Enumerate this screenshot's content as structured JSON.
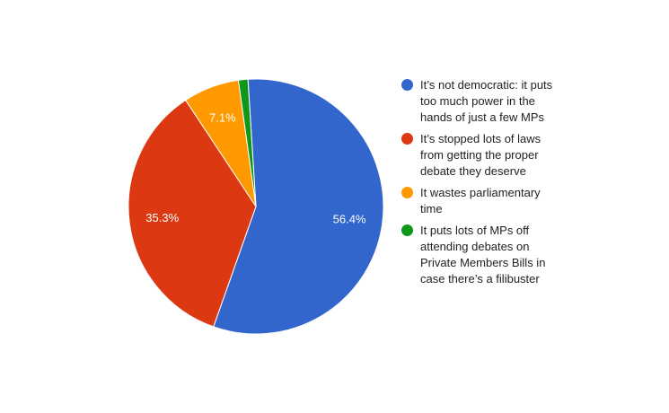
{
  "chart_data": {
    "type": "pie",
    "title": "",
    "start_angle_deg": -3.6,
    "legend_position": "right",
    "slices": [
      {
        "label": "It’s not democratic: it puts too much power in the hands of just a few MPs",
        "value": 56.4,
        "value_label": "56.4%",
        "color": "#3366cc"
      },
      {
        "label": "It’s stopped lots of laws from getting the proper debate they deserve",
        "value": 35.3,
        "value_label": "35.3%",
        "color": "#dc3912"
      },
      {
        "label": "It wastes parliamentary time",
        "value": 7.1,
        "value_label": "7.1%",
        "color": "#ff9900"
      },
      {
        "label": "It puts lots of MPs off attending debates on Private Members Bills in case there’s a filibuster",
        "value": 1.2,
        "value_label": "",
        "color": "#109618"
      }
    ]
  }
}
